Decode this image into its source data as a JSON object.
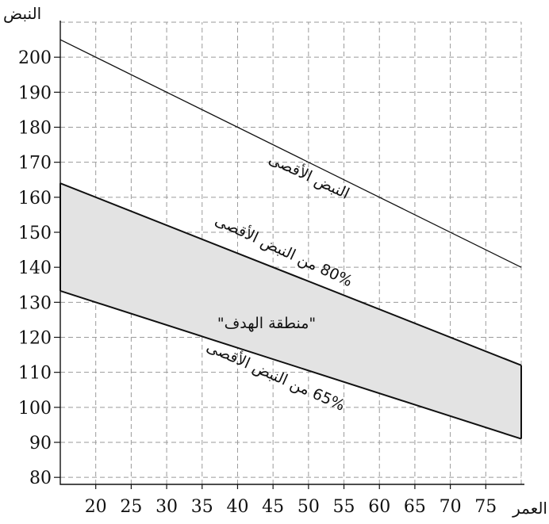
{
  "chart_data": {
    "type": "line",
    "ylabel": "النبض",
    "xlabel": "العمر",
    "x_ticks": [
      20,
      25,
      30,
      35,
      40,
      45,
      50,
      55,
      60,
      65,
      70,
      75
    ],
    "y_ticks": [
      80,
      90,
      100,
      110,
      120,
      130,
      140,
      150,
      160,
      170,
      180,
      190,
      200
    ],
    "xlim": [
      15,
      80
    ],
    "ylim": [
      78,
      210
    ],
    "grid": true,
    "series": [
      {
        "name": "النبض الأقصى",
        "x": [
          15,
          80
        ],
        "y": [
          205,
          140
        ]
      },
      {
        "name": "80% من النبض الأقصى",
        "x": [
          15,
          80
        ],
        "y": [
          164,
          112
        ]
      },
      {
        "name": "65% من النبض الأقصى",
        "x": [
          15,
          80
        ],
        "y": [
          133.25,
          91
        ]
      }
    ],
    "band": {
      "label": "\"منطقة الهدف\"",
      "lower": "65% من النبض الأقصى",
      "upper": "80% من النبض الأقصى",
      "color": "#e3e3e3"
    },
    "colors": {
      "line": "#111111",
      "grid": "#9a9a9a",
      "band": "#e3e3e3"
    }
  }
}
